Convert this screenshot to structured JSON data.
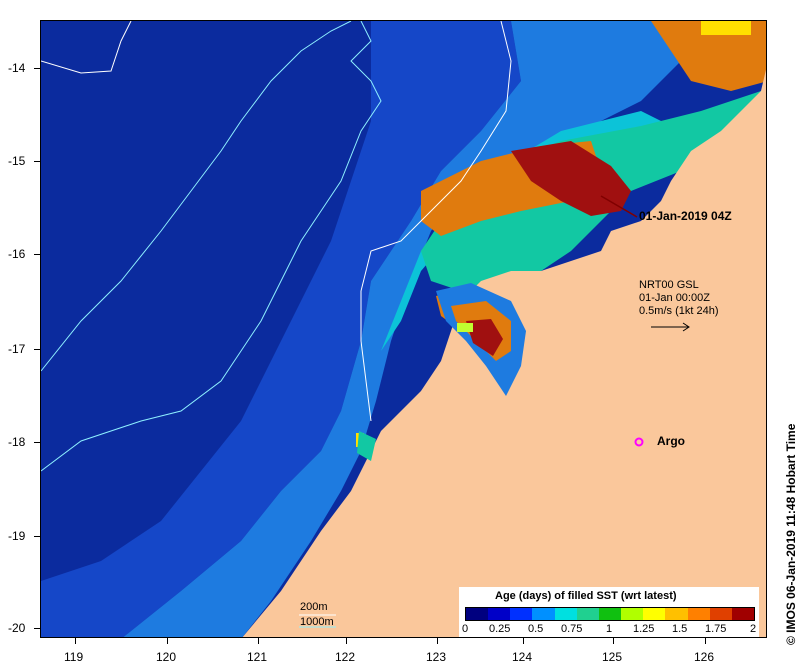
{
  "map": {
    "lon_ticks": [
      "119",
      "120",
      "121",
      "122",
      "123",
      "124",
      "125",
      "126"
    ],
    "lat_ticks": [
      "-14",
      "-15",
      "-16",
      "-17",
      "-18",
      "-19",
      "-20"
    ],
    "colors": {
      "land": "#fac79b",
      "ocean_deep": "#0b2b9e",
      "ocean_mid": "#1547c8",
      "ocean_shelf": "#1e7be0",
      "shelf_cyan": "#0cc3d8",
      "green": "#12c8a3",
      "orange": "#e07b0e",
      "red": "#a01010",
      "isobath": "#8ef0ff",
      "isobath_white": "#ffffff"
    }
  },
  "overlay": {
    "image_time": "01-Jan-2019 04Z",
    "nrt_line1": "NRT00 GSL",
    "nrt_line2": "01-Jan 00:00Z",
    "nrt_line3": "0.5m/s (1kt 24h)",
    "argo": "Argo"
  },
  "depth_legend": {
    "d200": "200m",
    "d1000": "1000m"
  },
  "colorbar": {
    "title": "Age (days) of filled SST (wrt latest)",
    "labels": [
      "0",
      "0.25",
      "0.5",
      "0.75",
      "1",
      "1.25",
      "1.5",
      "1.75",
      "2"
    ],
    "colors": [
      "#00007f",
      "#0000c8",
      "#0030ff",
      "#0090ff",
      "#00e0e0",
      "#20d090",
      "#10c010",
      "#b0ff00",
      "#ffff00",
      "#ffc000",
      "#ff8000",
      "#e04000",
      "#a00000"
    ]
  },
  "credit": "© IMOS 06-Jan-2019 11:48 Hobart Time"
}
